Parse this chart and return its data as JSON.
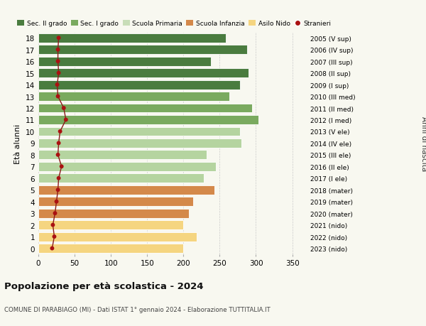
{
  "ages": [
    18,
    17,
    16,
    15,
    14,
    13,
    12,
    11,
    10,
    9,
    8,
    7,
    6,
    5,
    4,
    3,
    2,
    1,
    0
  ],
  "bar_values": [
    258,
    288,
    238,
    290,
    278,
    263,
    295,
    303,
    278,
    280,
    232,
    245,
    228,
    243,
    213,
    208,
    200,
    218,
    200
  ],
  "stranieri": [
    28,
    27,
    27,
    28,
    26,
    27,
    35,
    38,
    30,
    28,
    27,
    32,
    28,
    27,
    25,
    23,
    20,
    22,
    19
  ],
  "right_labels": [
    "2005 (V sup)",
    "2006 (IV sup)",
    "2007 (III sup)",
    "2008 (II sup)",
    "2009 (I sup)",
    "2010 (III med)",
    "2011 (II med)",
    "2012 (I med)",
    "2013 (V ele)",
    "2014 (IV ele)",
    "2015 (III ele)",
    "2016 (II ele)",
    "2017 (I ele)",
    "2018 (mater)",
    "2019 (mater)",
    "2020 (mater)",
    "2021 (nido)",
    "2022 (nido)",
    "2023 (nido)"
  ],
  "bar_colors": [
    "#4a7c3f",
    "#4a7c3f",
    "#4a7c3f",
    "#4a7c3f",
    "#4a7c3f",
    "#7aaa5f",
    "#7aaa5f",
    "#7aaa5f",
    "#b5d4a0",
    "#b5d4a0",
    "#b5d4a0",
    "#b5d4a0",
    "#b5d4a0",
    "#d4894a",
    "#d4894a",
    "#d4894a",
    "#f5d580",
    "#f5d580",
    "#f5d580"
  ],
  "legend_labels": [
    "Sec. II grado",
    "Sec. I grado",
    "Scuola Primaria",
    "Scuola Infanzia",
    "Asilo Nido",
    "Stranieri"
  ],
  "legend_colors": [
    "#4a7c3f",
    "#7aaa5f",
    "#c8ddb8",
    "#d4894a",
    "#f5d580",
    "#aa1111"
  ],
  "title": "Popolazione per età scolastica - 2024",
  "subtitle": "COMUNE DI PARABIAGO (MI) - Dati ISTAT 1° gennaio 2024 - Elaborazione TUTTITALIA.IT",
  "ylabel": "Età alunni",
  "right_ylabel": "Anni di nascita",
  "xlabel_vals": [
    0,
    50,
    100,
    150,
    200,
    250,
    300,
    350
  ],
  "xlim": [
    0,
    370
  ],
  "ylim": [
    -0.5,
    18.5
  ],
  "background_color": "#f8f8f0",
  "stranieri_color": "#aa1111",
  "stranieri_line_color": "#8b1a1a",
  "bar_height": 0.78
}
